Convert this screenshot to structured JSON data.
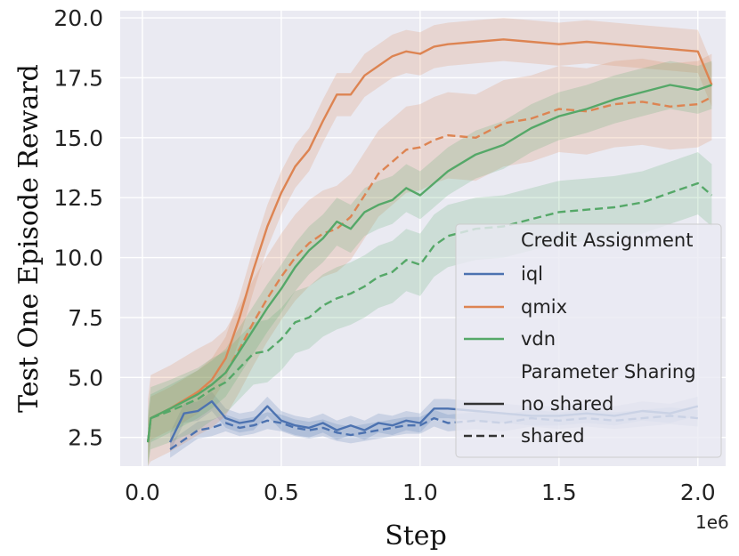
{
  "chart_data": {
    "type": "line",
    "xlabel": "Step",
    "ylabel": "Test One Episode Reward",
    "x_multiplier": "1e6",
    "xlim": [
      -0.08,
      2.1
    ],
    "ylim": [
      1.3,
      20.3
    ],
    "x_ticks": [
      {
        "value": 0.0,
        "label": "0.0"
      },
      {
        "value": 0.5,
        "label": "0.5"
      },
      {
        "value": 1.0,
        "label": "1.0"
      },
      {
        "value": 1.5,
        "label": "1.5"
      },
      {
        "value": 2.0,
        "label": "2.0"
      }
    ],
    "y_ticks": [
      {
        "value": 2.5,
        "label": "2.5"
      },
      {
        "value": 5.0,
        "label": "5.0"
      },
      {
        "value": 7.5,
        "label": "7.5"
      },
      {
        "value": 10.0,
        "label": "10.0"
      },
      {
        "value": 12.5,
        "label": "12.5"
      },
      {
        "value": 15.0,
        "label": "15.0"
      },
      {
        "value": 17.5,
        "label": "17.5"
      },
      {
        "value": 20.0,
        "label": "20.0"
      }
    ],
    "grid": true,
    "colors": {
      "iql": "#4c72b0",
      "qmix": "#dd8452",
      "vdn": "#55a868",
      "background": "#eaeaf2",
      "grid": "#ffffff"
    },
    "legend": {
      "position": "center-right",
      "sections": [
        {
          "title": "Credit Assignment",
          "entries": [
            {
              "label": "iql",
              "key": "iql"
            },
            {
              "label": "qmix",
              "key": "qmix"
            },
            {
              "label": "vdn",
              "key": "vdn"
            }
          ]
        },
        {
          "title": "Parameter Sharing",
          "entries": [
            {
              "label": "no shared",
              "style": "solid"
            },
            {
              "label": "shared",
              "style": "dashed"
            }
          ]
        }
      ]
    },
    "series": [
      {
        "name": "iql no shared",
        "algo": "iql",
        "style": "solid",
        "x": [
          0.1,
          0.15,
          0.2,
          0.25,
          0.3,
          0.35,
          0.4,
          0.45,
          0.5,
          0.55,
          0.6,
          0.65,
          0.7,
          0.75,
          0.8,
          0.85,
          0.9,
          0.95,
          1.0,
          1.05,
          1.1,
          1.2,
          1.3,
          1.4,
          1.5,
          1.6,
          1.7,
          1.8,
          1.9,
          2.0
        ],
        "y": [
          2.3,
          3.5,
          3.6,
          4.0,
          3.3,
          3.1,
          3.2,
          3.8,
          3.2,
          3.0,
          2.9,
          3.1,
          2.8,
          3.0,
          2.8,
          3.1,
          3.0,
          3.2,
          3.1,
          3.7,
          3.7,
          3.6,
          3.5,
          3.4,
          3.4,
          3.5,
          3.4,
          3.6,
          3.5,
          3.8
        ],
        "band": 0.4
      },
      {
        "name": "iql shared",
        "algo": "iql",
        "style": "dashed",
        "x": [
          0.1,
          0.15,
          0.2,
          0.25,
          0.3,
          0.35,
          0.4,
          0.45,
          0.5,
          0.55,
          0.6,
          0.65,
          0.7,
          0.75,
          0.8,
          0.85,
          0.9,
          0.95,
          1.0,
          1.05,
          1.1,
          1.2,
          1.3,
          1.4,
          1.5,
          1.6,
          1.7,
          1.8,
          1.9,
          2.0
        ],
        "y": [
          2.0,
          2.4,
          2.8,
          2.9,
          3.1,
          2.9,
          3.0,
          3.2,
          3.1,
          2.9,
          2.8,
          2.9,
          2.7,
          2.6,
          2.7,
          2.8,
          2.9,
          3.0,
          3.0,
          3.3,
          3.1,
          3.2,
          3.1,
          3.3,
          3.2,
          3.3,
          3.2,
          3.3,
          3.4,
          3.3
        ],
        "band": 0.35
      },
      {
        "name": "qmix no shared",
        "algo": "qmix",
        "style": "solid",
        "x": [
          0.02,
          0.03,
          0.1,
          0.2,
          0.25,
          0.3,
          0.35,
          0.4,
          0.45,
          0.5,
          0.55,
          0.6,
          0.65,
          0.7,
          0.75,
          0.8,
          0.85,
          0.9,
          0.95,
          1.0,
          1.05,
          1.1,
          1.2,
          1.3,
          1.4,
          1.5,
          1.6,
          1.7,
          1.8,
          1.9,
          2.0,
          2.05
        ],
        "y": [
          2.3,
          3.3,
          3.7,
          4.4,
          4.9,
          5.8,
          7.5,
          9.5,
          11.3,
          12.7,
          13.8,
          14.5,
          15.7,
          16.8,
          16.8,
          17.6,
          18.0,
          18.4,
          18.6,
          18.5,
          18.8,
          18.9,
          19.0,
          19.1,
          19.0,
          18.9,
          19.0,
          18.9,
          18.8,
          18.7,
          18.6,
          17.2
        ],
        "band": 0.9
      },
      {
        "name": "qmix shared",
        "algo": "qmix",
        "style": "dashed",
        "x": [
          0.02,
          0.03,
          0.1,
          0.2,
          0.25,
          0.3,
          0.35,
          0.4,
          0.45,
          0.5,
          0.55,
          0.6,
          0.65,
          0.7,
          0.75,
          0.8,
          0.85,
          0.9,
          0.95,
          1.0,
          1.05,
          1.1,
          1.2,
          1.3,
          1.4,
          1.5,
          1.6,
          1.7,
          1.8,
          1.9,
          2.0,
          2.05
        ],
        "y": [
          2.3,
          3.3,
          3.7,
          4.4,
          4.7,
          5.2,
          6.2,
          7.3,
          8.3,
          9.2,
          10.0,
          10.6,
          11.0,
          11.2,
          11.7,
          12.6,
          13.5,
          14.0,
          14.5,
          14.6,
          14.9,
          15.1,
          15.0,
          15.6,
          15.8,
          16.2,
          16.1,
          16.4,
          16.5,
          16.3,
          16.4,
          16.7
        ],
        "band": 1.8
      },
      {
        "name": "vdn no shared",
        "algo": "vdn",
        "style": "solid",
        "x": [
          0.02,
          0.03,
          0.1,
          0.2,
          0.25,
          0.3,
          0.35,
          0.4,
          0.45,
          0.5,
          0.55,
          0.6,
          0.65,
          0.7,
          0.75,
          0.8,
          0.85,
          0.9,
          0.95,
          1.0,
          1.05,
          1.1,
          1.2,
          1.3,
          1.4,
          1.5,
          1.6,
          1.7,
          1.8,
          1.9,
          2.0,
          2.05
        ],
        "y": [
          2.3,
          3.3,
          3.7,
          4.3,
          4.7,
          5.2,
          6.1,
          7.0,
          7.9,
          8.7,
          9.6,
          10.3,
          10.8,
          11.5,
          11.2,
          11.9,
          12.2,
          12.4,
          12.9,
          12.6,
          13.1,
          13.6,
          14.3,
          14.7,
          15.4,
          15.9,
          16.2,
          16.6,
          16.9,
          17.2,
          17.0,
          17.2
        ],
        "band": 1.0
      },
      {
        "name": "vdn shared",
        "algo": "vdn",
        "style": "dashed",
        "x": [
          0.02,
          0.03,
          0.1,
          0.2,
          0.25,
          0.3,
          0.35,
          0.4,
          0.45,
          0.5,
          0.55,
          0.6,
          0.65,
          0.7,
          0.75,
          0.8,
          0.85,
          0.9,
          0.95,
          1.0,
          1.05,
          1.1,
          1.2,
          1.3,
          1.4,
          1.5,
          1.6,
          1.7,
          1.8,
          1.9,
          2.0,
          2.05
        ],
        "y": [
          2.3,
          3.3,
          3.6,
          4.1,
          4.5,
          4.8,
          5.4,
          6.0,
          6.1,
          6.6,
          7.3,
          7.5,
          8.0,
          8.3,
          8.5,
          8.8,
          9.2,
          9.4,
          9.9,
          9.7,
          10.5,
          10.9,
          11.2,
          11.3,
          11.6,
          11.9,
          12.0,
          12.1,
          12.3,
          12.7,
          13.1,
          12.6
        ],
        "band": 1.3
      }
    ]
  }
}
